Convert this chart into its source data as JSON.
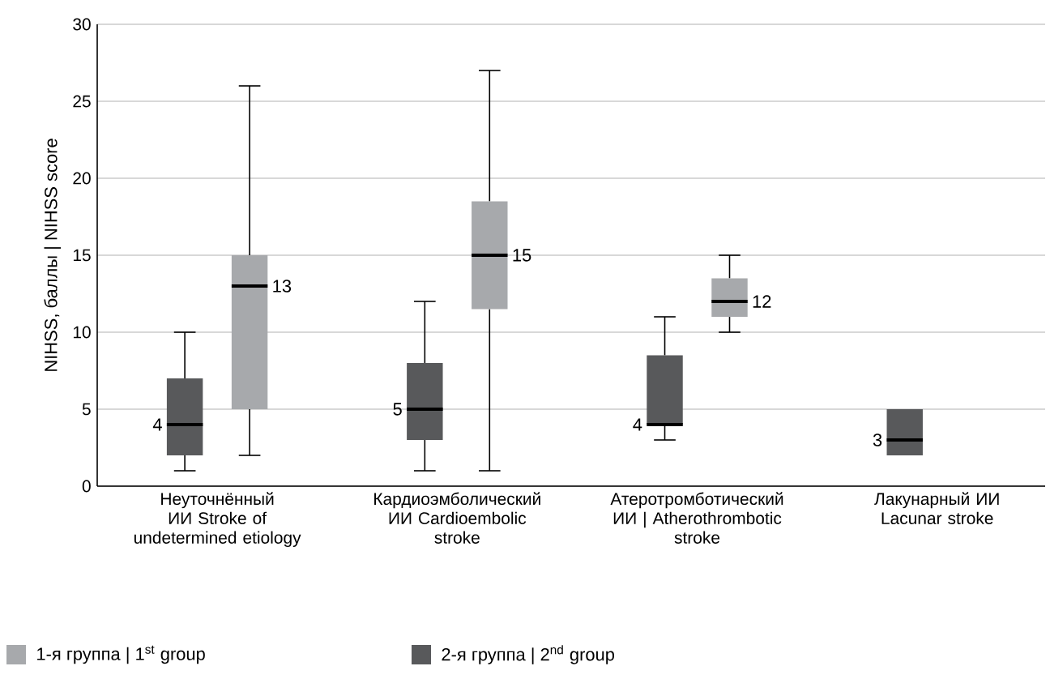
{
  "chart_data": {
    "type": "box",
    "ylabel": "NIHSS, баллы | NIHSS score",
    "categories": [
      "Неуточнённый ИИ Stroke of undetermined etiology",
      "Кардиоэмболический ИИ Cardioembolic stroke",
      "Атеротромботический ИИ | Atherothrombotic stroke",
      "Лакунарный ИИ Lacunar stroke"
    ],
    "series": [
      {
        "name": "1-я группа | 1$^{st}$ group",
        "color": "#a7a9ac",
        "boxes": [
          {
            "low": 2,
            "q1": 5,
            "median": 13,
            "q3": 15,
            "high": 26
          },
          {
            "low": 1,
            "q1": 11.5,
            "median": 15,
            "q3": 18.5,
            "high": 27
          },
          {
            "low": 10,
            "q1": 11,
            "median": 12,
            "q3": 13.5,
            "high": 15
          },
          null
        ],
        "value_labels": [
          "13",
          "15",
          "12",
          null
        ]
      },
      {
        "name": "2-я группа | 2$^{nd}$ group",
        "color": "#58595b",
        "boxes": [
          {
            "low": 1,
            "q1": 2,
            "median": 4,
            "q3": 7,
            "high": 10
          },
          {
            "low": 1,
            "q1": 3,
            "median": 5,
            "q3": 8,
            "high": 12
          },
          {
            "low": 3,
            "q1": 4,
            "median": 4,
            "q3": 8.5,
            "high": 11
          },
          {
            "low": 2,
            "q1": 2,
            "median": 3,
            "q3": 5,
            "high": 5
          }
        ],
        "value_labels": [
          "4",
          "5",
          "4",
          "3"
        ]
      }
    ],
    "ylim": [
      0,
      30
    ],
    "yticks": [
      0,
      5,
      10,
      15,
      20,
      25,
      30
    ],
    "grid": "y",
    "legend": "bottom left"
  }
}
